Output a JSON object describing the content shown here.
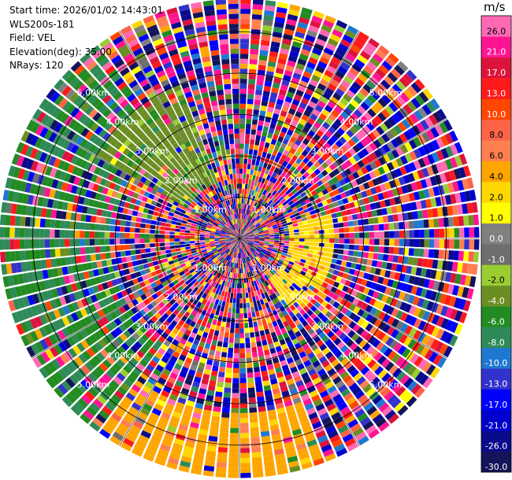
{
  "header": {
    "start_time": "Start time: 2026/01/02 14:43:01",
    "instrument": "WLS200s-181",
    "field": "Field: VEL",
    "elevation": "Elevation(deg): 35.00",
    "nrays": "NRays: 120"
  },
  "chart_data": {
    "type": "ppi",
    "title": "",
    "field": "VEL",
    "units": "m/s",
    "elevation_deg": 35.0,
    "n_rays": 120,
    "max_range_km": 5.8,
    "range_rings_km": [
      1,
      2,
      3,
      4,
      5
    ],
    "range_ring_labels": [
      "1.00km",
      "2.00km",
      "3.00km",
      "4.00km",
      "5.00km"
    ],
    "colorbar": {
      "label": "m/s",
      "boundaries": [
        -30,
        -26,
        -21,
        -17,
        -13,
        -10,
        -8,
        -6,
        -4,
        -2,
        -1,
        0,
        1,
        2,
        4,
        6,
        8,
        10,
        13,
        17,
        21,
        26,
        30
      ],
      "tick_labels": [
        "-30.0",
        "-26.0",
        "-21.0",
        "-17.0",
        "-13.0",
        "-10.0",
        "-8.0",
        "-6.0",
        "-4.0",
        "-2.0",
        "-1.0",
        "0.0",
        "1.0",
        "2.0",
        "4.0",
        "6.0",
        "8.0",
        "10.0",
        "13.0",
        "17.0",
        "21.0",
        "26.0"
      ],
      "colors": [
        "#14145a",
        "#0a0a8c",
        "#0000cd",
        "#0000ff",
        "#3232cd",
        "#1e78d2",
        "#2e8b57",
        "#228b22",
        "#6b8e23",
        "#9acd32",
        "#6e6e6e",
        "#808080",
        "#ffff00",
        "#ffd700",
        "#ffa500",
        "#ff7f50",
        "#ff6347",
        "#ff4500",
        "#ff1a1a",
        "#dc143c",
        "#ff1493",
        "#ff69b4"
      ]
    },
    "features": [
      {
        "description": "gate-to-gate noisy near field",
        "range_km": [
          0,
          1.2
        ]
      },
      {
        "description": "receding (positive) sector toward east",
        "azimuth_deg": [
          75,
          145
        ],
        "range_km": [
          0.6,
          2.3
        ],
        "value_ms": 3
      },
      {
        "description": "approaching (negative) sector toward north-west",
        "azimuth_deg": [
          300,
          340
        ],
        "range_km": [
          1.5,
          4.0
        ],
        "value_ms": -3
      },
      {
        "description": "positive arc toward south",
        "azimuth_deg": [
          160,
          215
        ],
        "range_km": [
          4.2,
          5.8
        ],
        "value_ms": 5
      }
    ]
  }
}
